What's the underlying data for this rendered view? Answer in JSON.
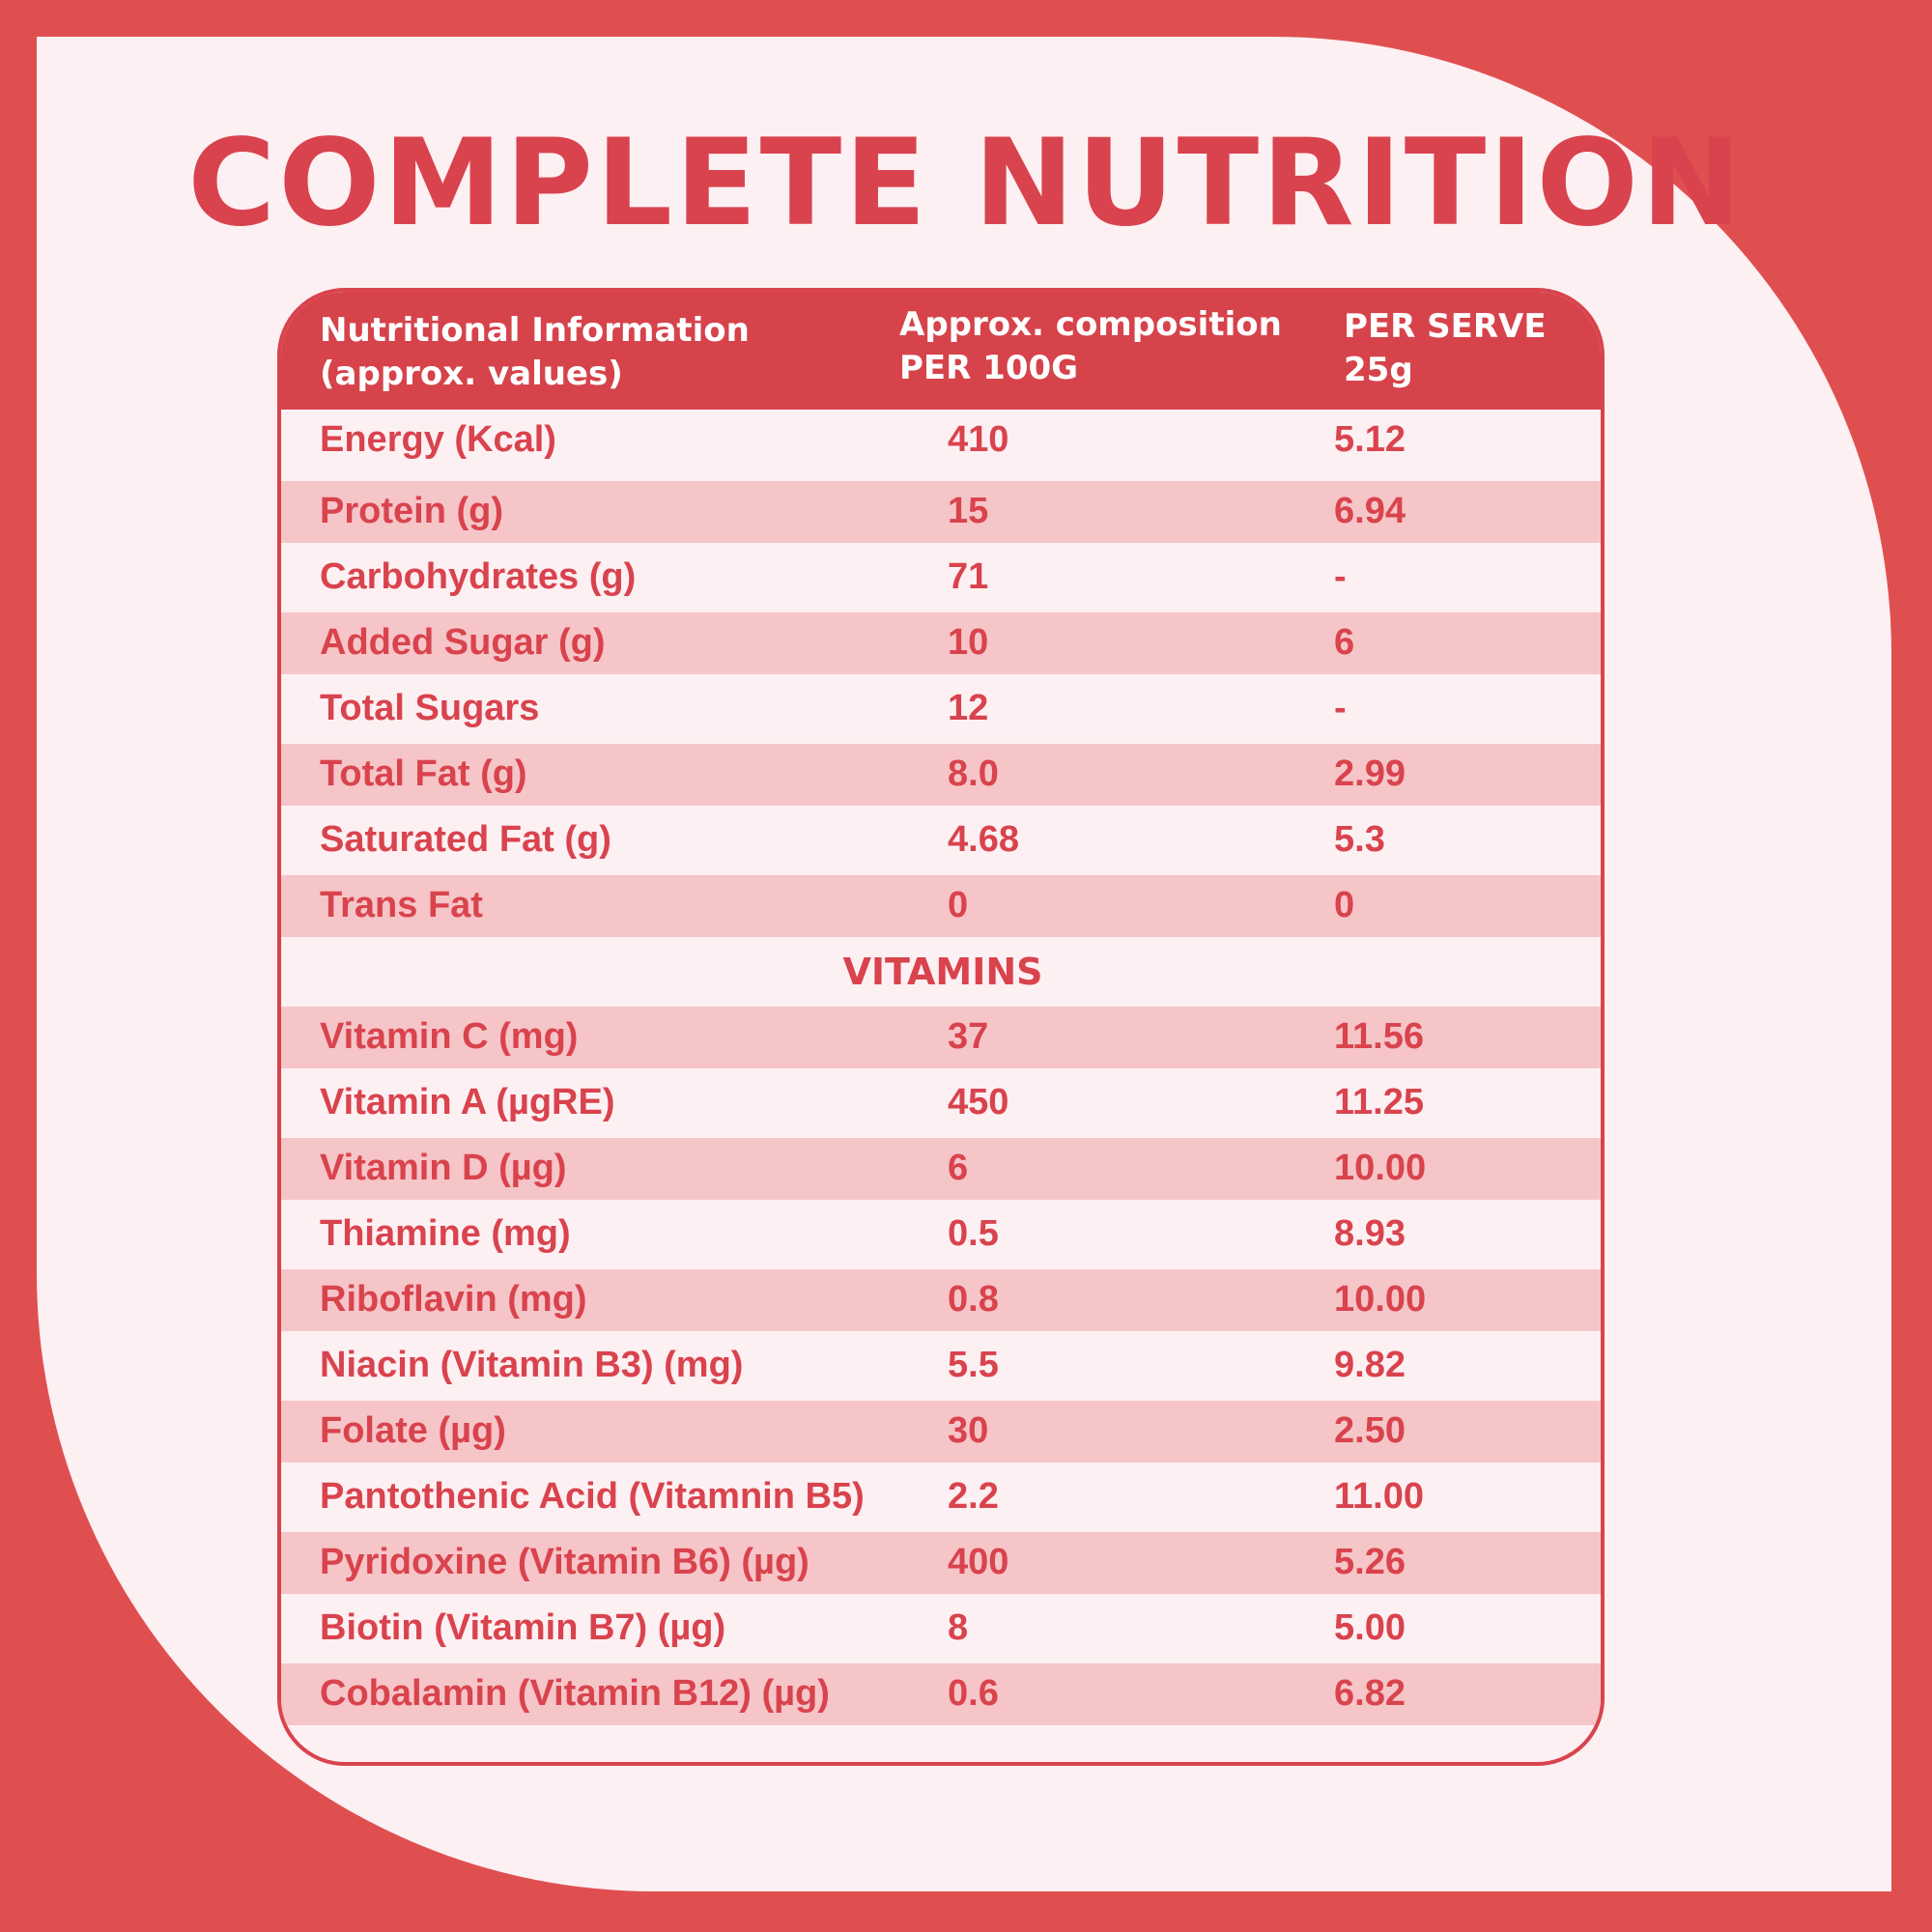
{
  "title": "COMPLETE NUTRITION",
  "header": {
    "col1": [
      "Nutritional Information",
      "(approx. values)"
    ],
    "col2": [
      "Approx. composition",
      "PER 100G"
    ],
    "col3": [
      "PER SERVE",
      "25g"
    ]
  },
  "rows": [
    {
      "name": "Energy (Kcal)",
      "per100": "410",
      "perServe": "5.12"
    },
    {
      "name": "Protein (g)",
      "per100": "15",
      "perServe": "6.94"
    },
    {
      "name": "Carbohydrates (g)",
      "per100": "71",
      "perServe": "-"
    },
    {
      "name": "Added Sugar (g)",
      "per100": "10",
      "perServe": "6"
    },
    {
      "name": "Total Sugars",
      "per100": "12",
      "perServe": "-"
    },
    {
      "name": "Total Fat (g)",
      "per100": "8.0",
      "perServe": "2.99"
    },
    {
      "name": "Saturated Fat (g)",
      "per100": "4.68",
      "perServe": "5.3"
    },
    {
      "name": "Trans Fat",
      "per100": "0",
      "perServe": "0"
    }
  ],
  "section_label": "VITAMINS",
  "vitamins": [
    {
      "name": "Vitamin C (mg)",
      "per100": "37",
      "perServe": "11.56"
    },
    {
      "name": "Vitamin A (µgRE)",
      "per100": "450",
      "perServe": "11.25"
    },
    {
      "name": "Vitamin D (µg)",
      "per100": "6",
      "perServe": "10.00"
    },
    {
      "name": "Thiamine (mg)",
      "per100": "0.5",
      "perServe": "8.93"
    },
    {
      "name": "Riboflavin (mg)",
      "per100": "0.8",
      "perServe": "10.00"
    },
    {
      "name": "Niacin (Vitamin B3) (mg)",
      "per100": "5.5",
      "perServe": "9.82"
    },
    {
      "name": "Folate (µg)",
      "per100": "30",
      "perServe": "2.50"
    },
    {
      "name": "Pantothenic Acid (Vitamnin B5)",
      "per100": "2.2",
      "perServe": "11.00"
    },
    {
      "name": "Pyridoxine (Vitamin B6) (µg)",
      "per100": "400",
      "perServe": "5.26"
    },
    {
      "name": "Biotin (Vitamin B7) (µg)",
      "per100": "8",
      "perServe": "5.00"
    },
    {
      "name": "Cobalamin (Vitamin B12) (µg)",
      "per100": "0.6",
      "perServe": "6.82"
    }
  ],
  "colors": {
    "accent": "#d9434d",
    "background": "#e04f50",
    "panel": "#fdf0f3",
    "stripe": "#f6c5c8"
  }
}
